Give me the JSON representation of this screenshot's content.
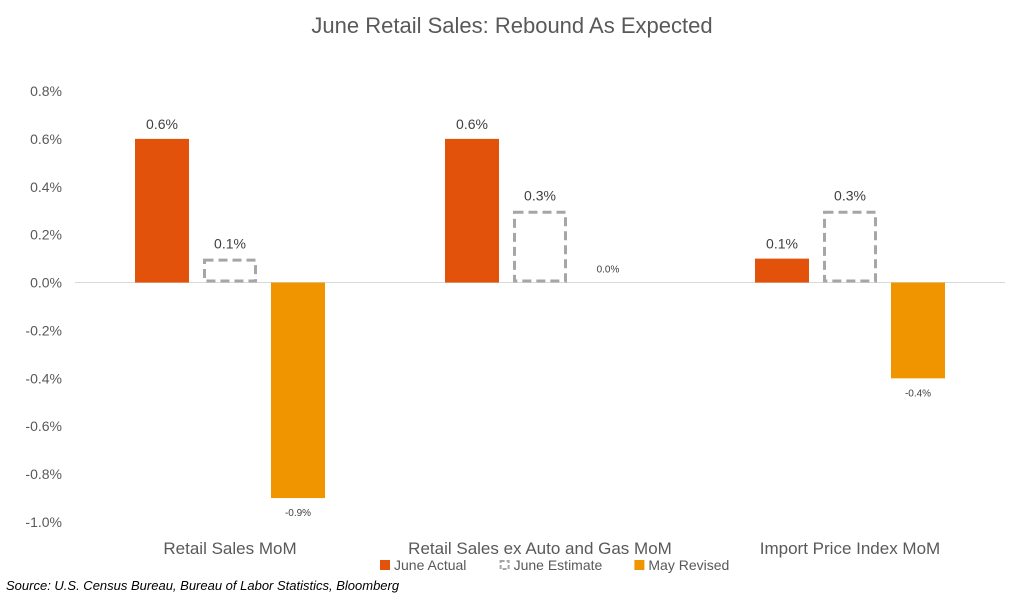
{
  "chart_data": {
    "type": "bar",
    "title": "June Retail Sales: Rebound As Expected",
    "categories": [
      "Retail Sales MoM",
      "Retail Sales ex Auto and Gas MoM",
      "Import Price Index MoM"
    ],
    "series": [
      {
        "name": "June Actual",
        "values": [
          0.6,
          0.6,
          0.1
        ],
        "labels": [
          "0.6%",
          "0.6%",
          "0.1%"
        ],
        "color": "#e2520b",
        "style": "solid"
      },
      {
        "name": "June Estimate",
        "values": [
          0.1,
          0.3,
          0.3
        ],
        "labels": [
          "0.1%",
          "0.3%",
          "0.3%"
        ],
        "color": "#a6a6a6",
        "style": "dashed-outline"
      },
      {
        "name": "May Revised",
        "values": [
          -0.9,
          0.0,
          -0.4
        ],
        "labels": [
          "-0.9%",
          "0.0%",
          "-0.4%"
        ],
        "color": "#f09400",
        "style": "solid"
      }
    ],
    "ylim": [
      -1.0,
      0.8
    ],
    "yticks": [
      0.8,
      0.6,
      0.4,
      0.2,
      0.0,
      -0.2,
      -0.4,
      -0.6,
      -0.8,
      -1.0
    ],
    "ytick_labels": [
      "0.8%",
      "0.6%",
      "0.4%",
      "0.2%",
      "0.0%",
      "-0.2%",
      "-0.4%",
      "-0.6%",
      "-0.8%",
      "-1.0%"
    ],
    "xlabel": "",
    "ylabel": "",
    "grid": false,
    "legend_position": "bottom"
  },
  "source": "Source: U.S. Census Bureau, Bureau of Labor Statistics, Bloomberg"
}
